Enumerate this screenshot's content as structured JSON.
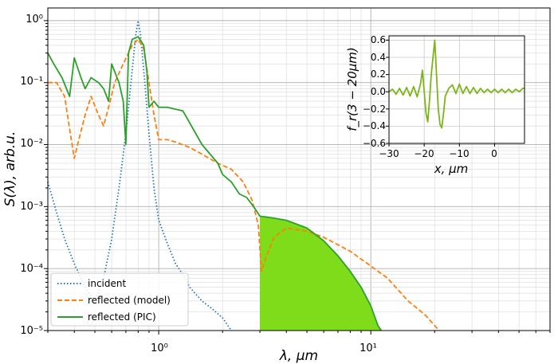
{
  "chart_data": [
    {
      "type": "line",
      "xscale": "log",
      "yscale": "log",
      "xlabel": "λ, μm",
      "ylabel": "S(λ), arb.u.",
      "xlim": [
        0.3,
        70
      ],
      "ylim": [
        1e-05,
        1.6
      ],
      "grid": "on",
      "legend_position": "lower-left",
      "x_tick_labels": [
        "10⁰",
        "10¹"
      ],
      "y_tick_labels": [
        "10⁻⁵",
        "10⁻⁴",
        "10⁻³",
        "10⁻²",
        "10⁻¹",
        "10⁰"
      ],
      "series": [
        {
          "name": "incident",
          "style": "dotted",
          "color": "#1f77b4",
          "points": [
            [
              0.3,
              0.0025
            ],
            [
              0.33,
              0.0008
            ],
            [
              0.36,
              0.0003
            ],
            [
              0.4,
              0.00012
            ],
            [
              0.45,
              5e-05
            ],
            [
              0.5,
              3e-05
            ],
            [
              0.55,
              7e-05
            ],
            [
              0.6,
              0.0003
            ],
            [
              0.65,
              0.002
            ],
            [
              0.7,
              0.015
            ],
            [
              0.74,
              0.1
            ],
            [
              0.78,
              0.6
            ],
            [
              0.8,
              1.0
            ],
            [
              0.82,
              0.6
            ],
            [
              0.86,
              0.1
            ],
            [
              0.9,
              0.015
            ],
            [
              0.95,
              0.002
            ],
            [
              1.0,
              0.0006
            ],
            [
              1.1,
              0.00025
            ],
            [
              1.2,
              0.00012
            ],
            [
              1.3,
              8e-05
            ],
            [
              1.4,
              5e-05
            ],
            [
              1.6,
              3e-05
            ],
            [
              1.8,
              2.2e-05
            ],
            [
              2.0,
              1.6e-05
            ],
            [
              2.2,
              1e-05
            ]
          ]
        },
        {
          "name": "reflected (model)",
          "style": "dashed",
          "color": "#ff7f0e",
          "points": [
            [
              0.3,
              0.1
            ],
            [
              0.33,
              0.1
            ],
            [
              0.36,
              0.06
            ],
            [
              0.38,
              0.018
            ],
            [
              0.4,
              0.006
            ],
            [
              0.42,
              0.012
            ],
            [
              0.45,
              0.03
            ],
            [
              0.48,
              0.06
            ],
            [
              0.52,
              0.03
            ],
            [
              0.55,
              0.02
            ],
            [
              0.58,
              0.04
            ],
            [
              0.62,
              0.1
            ],
            [
              0.68,
              0.2
            ],
            [
              0.75,
              0.4
            ],
            [
              0.8,
              0.5
            ],
            [
              0.85,
              0.35
            ],
            [
              0.9,
              0.1
            ],
            [
              0.95,
              0.03
            ],
            [
              1.0,
              0.012
            ],
            [
              1.1,
              0.012
            ],
            [
              1.2,
              0.011
            ],
            [
              1.4,
              0.009
            ],
            [
              1.6,
              0.007
            ],
            [
              1.9,
              0.005
            ],
            [
              2.2,
              0.004
            ],
            [
              2.5,
              0.0025
            ],
            [
              2.75,
              0.0013
            ],
            [
              2.95,
              0.0005
            ],
            [
              3.05,
              9e-05
            ],
            [
              3.2,
              0.00015
            ],
            [
              3.5,
              0.00032
            ],
            [
              4.0,
              0.00045
            ],
            [
              5.0,
              0.0004
            ],
            [
              6.0,
              0.00032
            ],
            [
              8.0,
              0.00019
            ],
            [
              10.0,
              0.00011
            ],
            [
              12.0,
              7e-05
            ],
            [
              15.0,
              3e-05
            ],
            [
              18.0,
              1.8e-05
            ],
            [
              21.0,
              1e-05
            ]
          ]
        },
        {
          "name": "reflected (PIC)",
          "style": "solid",
          "color": "#2ca02c",
          "points": [
            [
              0.3,
              0.3
            ],
            [
              0.32,
              0.2
            ],
            [
              0.35,
              0.12
            ],
            [
              0.38,
              0.06
            ],
            [
              0.4,
              0.25
            ],
            [
              0.43,
              0.12
            ],
            [
              0.45,
              0.08
            ],
            [
              0.48,
              0.12
            ],
            [
              0.52,
              0.1
            ],
            [
              0.55,
              0.08
            ],
            [
              0.58,
              0.05
            ],
            [
              0.6,
              0.2
            ],
            [
              0.65,
              0.1
            ],
            [
              0.68,
              0.05
            ],
            [
              0.7,
              0.01
            ],
            [
              0.72,
              0.3
            ],
            [
              0.75,
              0.5
            ],
            [
              0.8,
              0.55
            ],
            [
              0.85,
              0.4
            ],
            [
              0.88,
              0.15
            ],
            [
              0.9,
              0.04
            ],
            [
              0.95,
              0.05
            ],
            [
              1.0,
              0.04
            ],
            [
              1.05,
              0.04
            ],
            [
              1.1,
              0.04
            ],
            [
              1.3,
              0.035
            ],
            [
              1.6,
              0.01
            ],
            [
              1.9,
              0.005
            ],
            [
              2.0,
              0.0033
            ],
            [
              2.2,
              0.0025
            ],
            [
              2.4,
              0.0016
            ],
            [
              2.6,
              0.0014
            ],
            [
              2.8,
              0.001
            ],
            [
              3.0,
              0.0007
            ],
            [
              3.5,
              0.00065
            ],
            [
              4.0,
              0.0006
            ],
            [
              5.0,
              0.00045
            ],
            [
              6.0,
              0.00028
            ],
            [
              7.0,
              0.00016
            ],
            [
              8.0,
              9e-05
            ],
            [
              9.0,
              5e-05
            ],
            [
              10.0,
              2.5e-05
            ],
            [
              10.8,
              1.2e-05
            ],
            [
              11.2,
              1e-05
            ]
          ]
        }
      ],
      "shaded_region": {
        "color": "#7fdc1a",
        "x_range": [
          3,
          11.2
        ],
        "under_series": "reflected (PIC)"
      }
    },
    {
      "type": "line",
      "inset": true,
      "xlabel": "x, μm",
      "ylabel": "f_r(3 − 20μm)",
      "xlim": [
        -30,
        8.5
      ],
      "ylim": [
        -0.6,
        0.65
      ],
      "grid": "on",
      "x_ticks": [
        -30,
        -20,
        -10,
        0
      ],
      "x_tick_labels": [
        "−30",
        "−20",
        "−10",
        "0"
      ],
      "y_ticks": [
        -0.6,
        -0.4,
        -0.2,
        0.0,
        0.2,
        0.4,
        0.6
      ],
      "y_tick_labels": [
        "−0.6",
        "−0.4",
        "−0.2",
        "0.0",
        "0.2",
        "0.4",
        "0.6"
      ],
      "series": [
        {
          "color": "#7cb518",
          "points": [
            [
              -30,
              0.0
            ],
            [
              -29,
              0.03
            ],
            [
              -28,
              -0.03
            ],
            [
              -27,
              0.04
            ],
            [
              -26,
              -0.04
            ],
            [
              -25,
              0.05
            ],
            [
              -24,
              -0.05
            ],
            [
              -23,
              0.06
            ],
            [
              -22,
              -0.06
            ],
            [
              -21,
              0.1
            ],
            [
              -20.5,
              0.25
            ],
            [
              -20,
              0.0
            ],
            [
              -19.5,
              -0.25
            ],
            [
              -19,
              -0.35
            ],
            [
              -18.5,
              -0.1
            ],
            [
              -18,
              0.2
            ],
            [
              -17,
              0.6
            ],
            [
              -16.5,
              0.2
            ],
            [
              -16,
              -0.2
            ],
            [
              -15.5,
              -0.38
            ],
            [
              -15,
              -0.42
            ],
            [
              -14.5,
              -0.25
            ],
            [
              -14,
              -0.05
            ],
            [
              -13,
              0.04
            ],
            [
              -12,
              0.08
            ],
            [
              -11,
              -0.02
            ],
            [
              -10,
              0.09
            ],
            [
              -9,
              -0.02
            ],
            [
              -8,
              0.06
            ],
            [
              -7,
              -0.02
            ],
            [
              -6,
              0.05
            ],
            [
              -5,
              -0.02
            ],
            [
              -4,
              0.04
            ],
            [
              -3,
              -0.01
            ],
            [
              -2,
              0.03
            ],
            [
              -1,
              -0.01
            ],
            [
              0,
              0.03
            ],
            [
              1,
              -0.01
            ],
            [
              2,
              0.03
            ],
            [
              3,
              -0.01
            ],
            [
              4,
              0.03
            ],
            [
              5,
              -0.01
            ],
            [
              6,
              0.03
            ],
            [
              7,
              0.0
            ],
            [
              8,
              0.04
            ],
            [
              8.5,
              0.04
            ]
          ]
        }
      ]
    }
  ]
}
